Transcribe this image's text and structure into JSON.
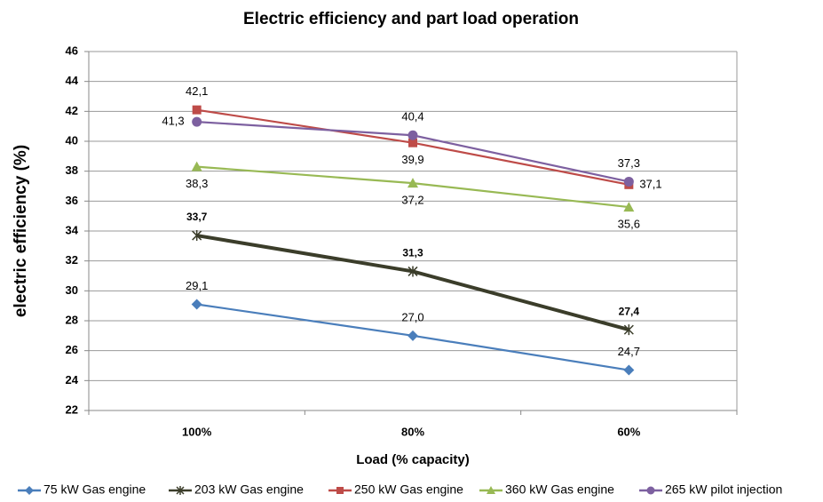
{
  "chart_data": {
    "type": "line",
    "title": "Electric efficiency and part load operation",
    "x_label": "Load (% capacity)",
    "y_label": "electric efficiency (%)",
    "categories": [
      "100%",
      "80%",
      "60%"
    ],
    "ylim": [
      22,
      46
    ],
    "yticks": [
      22,
      24,
      26,
      28,
      30,
      32,
      34,
      36,
      38,
      40,
      42,
      44,
      46
    ],
    "grid": true,
    "legend": "bottom",
    "series": [
      {
        "name": "75 kW Gas engine",
        "color": "#4a7ebb",
        "marker": "diamond",
        "values": [
          29.1,
          27.0,
          24.7
        ],
        "value_labels": [
          "29,1",
          "27,0",
          "24,7"
        ]
      },
      {
        "name": "203 kW Gas engine",
        "color": "#3b3d2a",
        "marker": "star",
        "values": [
          33.7,
          31.3,
          27.4
        ],
        "value_labels": [
          "33,7",
          "31,3",
          "27,4"
        ]
      },
      {
        "name": "250 kW Gas engine",
        "color": "#be4b48",
        "marker": "square",
        "values": [
          42.1,
          39.9,
          37.1
        ],
        "value_labels": [
          "42,1",
          "39,9",
          "37,1"
        ]
      },
      {
        "name": "360 kW Gas engine",
        "color": "#98b954",
        "marker": "triangle",
        "values": [
          38.3,
          37.2,
          35.6
        ],
        "value_labels": [
          "38,3",
          "37,2",
          "35,6"
        ]
      },
      {
        "name": "265 kW pilot injection",
        "color": "#7d60a0",
        "marker": "circle",
        "values": [
          41.3,
          40.4,
          37.3
        ],
        "value_labels": [
          "41,3",
          "40,4",
          "37,3"
        ]
      }
    ]
  }
}
